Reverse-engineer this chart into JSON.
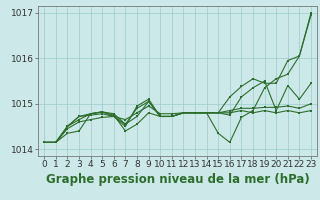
{
  "background_color": "#cce8e8",
  "grid_color": "#99cccc",
  "line_color": "#2d6e2d",
  "title": "Graphe pression niveau de la mer (hPa)",
  "xlim": [
    -0.5,
    23.5
  ],
  "ylim": [
    1013.85,
    1017.15
  ],
  "yticks": [
    1014,
    1015,
    1016,
    1017
  ],
  "xticks": [
    0,
    1,
    2,
    3,
    4,
    5,
    6,
    7,
    8,
    9,
    10,
    11,
    12,
    13,
    14,
    15,
    16,
    17,
    18,
    19,
    20,
    21,
    22,
    23
  ],
  "series": [
    [
      1014.15,
      1014.15,
      1014.45,
      1014.6,
      1014.65,
      1014.7,
      1014.72,
      1014.65,
      1014.8,
      1014.95,
      1014.78,
      1014.78,
      1014.8,
      1014.8,
      1014.8,
      1014.8,
      1014.85,
      1014.9,
      1014.9,
      1014.92,
      1014.92,
      1014.95,
      1014.9,
      1015.0
    ],
    [
      1014.15,
      1014.15,
      1014.5,
      1014.72,
      1014.75,
      1014.78,
      1014.72,
      1014.55,
      1014.72,
      1015.05,
      1014.72,
      1014.72,
      1014.8,
      1014.8,
      1014.8,
      1014.8,
      1014.75,
      1015.15,
      1015.35,
      1015.5,
      1014.85,
      1015.4,
      1015.1,
      1015.45
    ],
    [
      1014.15,
      1014.15,
      1014.5,
      1014.72,
      1014.78,
      1014.82,
      1014.72,
      1014.5,
      1014.95,
      1015.1,
      1014.72,
      1014.72,
      1014.8,
      1014.8,
      1014.8,
      1014.35,
      1014.15,
      1014.7,
      1014.85,
      1015.35,
      1015.55,
      1015.65,
      1016.05,
      1016.95
    ],
    [
      1014.15,
      1014.15,
      1014.5,
      1014.65,
      1014.78,
      1014.82,
      1014.78,
      1014.55,
      1014.9,
      1015.05,
      1014.72,
      1014.72,
      1014.8,
      1014.8,
      1014.8,
      1014.8,
      1015.15,
      1015.38,
      1015.55,
      1015.45,
      1015.45,
      1015.95,
      1016.05,
      1017.0
    ],
    [
      1014.15,
      1014.15,
      1014.35,
      1014.4,
      1014.78,
      1014.82,
      1014.75,
      1014.4,
      1014.55,
      1014.8,
      1014.72,
      1014.72,
      1014.8,
      1014.8,
      1014.8,
      1014.8,
      1014.8,
      1014.85,
      1014.8,
      1014.85,
      1014.8,
      1014.85,
      1014.8,
      1014.85
    ]
  ],
  "title_fontsize": 8.5,
  "tick_fontsize": 6.5
}
